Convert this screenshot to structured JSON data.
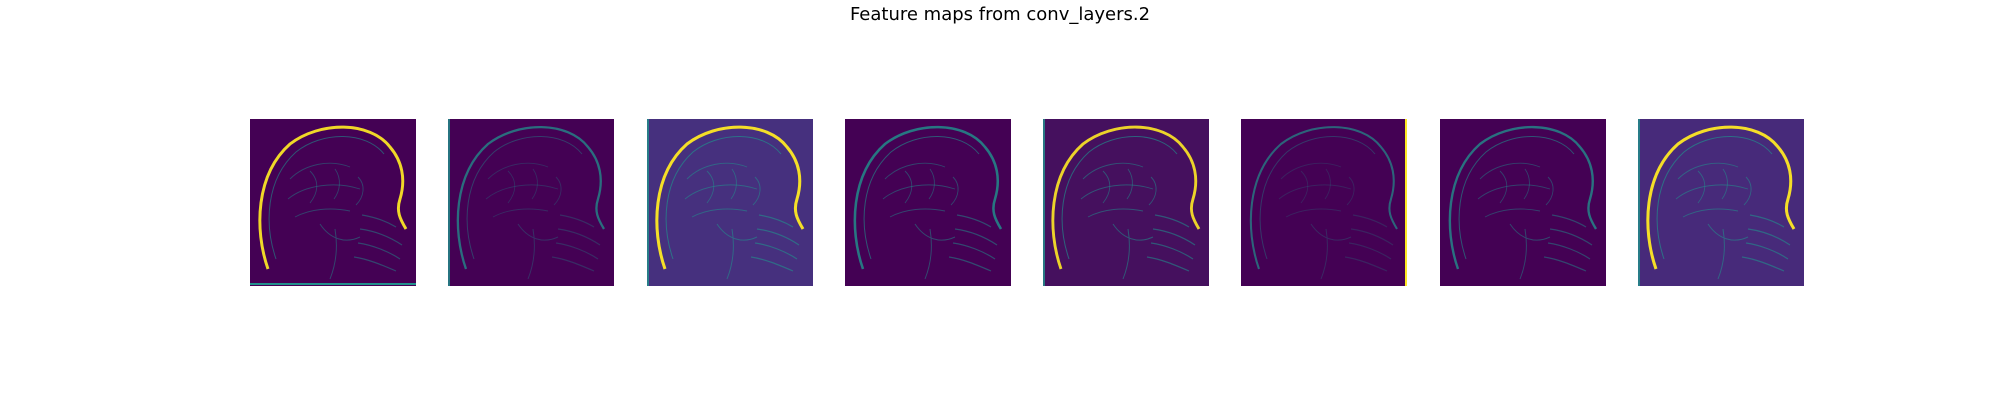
{
  "figure": {
    "title": "Feature maps from conv_layers.2"
  },
  "colormap": {
    "name": "viridis",
    "low": "#440154",
    "mid": "#21918c",
    "high": "#fde725"
  },
  "feature_maps": [
    {
      "index": 0,
      "background": "#440154",
      "edge_strength": 0.55,
      "skull_highlight": 0.85
    },
    {
      "index": 1,
      "background": "#440154",
      "edge_strength": 0.25,
      "skull_highlight": 0.45
    },
    {
      "index": 2,
      "background": "#46307e",
      "edge_strength": 0.75,
      "skull_highlight": 0.9
    },
    {
      "index": 3,
      "background": "#440154",
      "edge_strength": 0.6,
      "skull_highlight": 0.6
    },
    {
      "index": 4,
      "background": "#45105e",
      "edge_strength": 0.7,
      "skull_highlight": 0.8
    },
    {
      "index": 5,
      "background": "#440154",
      "edge_strength": 0.15,
      "skull_highlight": 0.3
    },
    {
      "index": 6,
      "background": "#440154",
      "edge_strength": 0.55,
      "skull_highlight": 0.5
    },
    {
      "index": 7,
      "background": "#472a7a",
      "edge_strength": 0.75,
      "skull_highlight": 0.9
    }
  ]
}
